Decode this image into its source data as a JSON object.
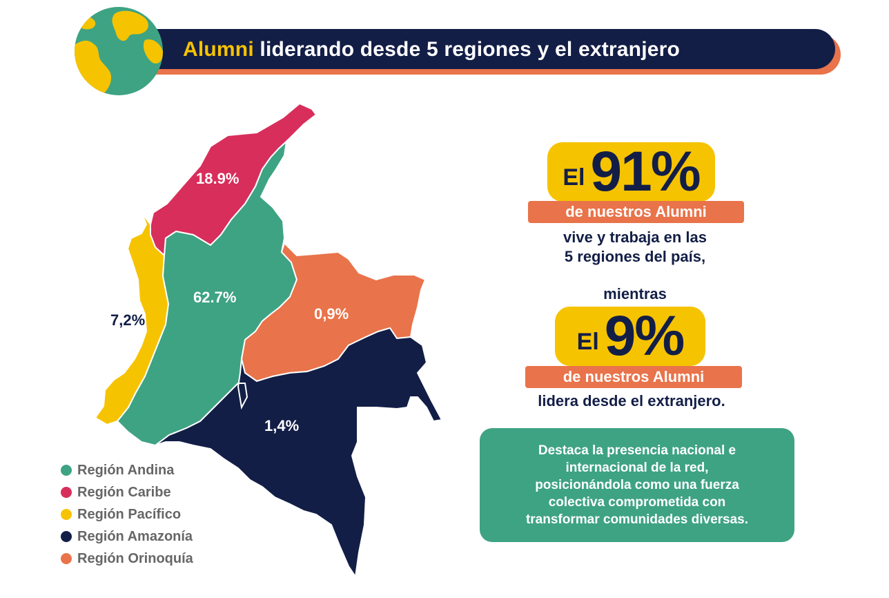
{
  "header": {
    "title_highlight": "Alumni",
    "title_rest": " liderando desde 5 regiones y el extranjero",
    "globe_icon": "globe-icon"
  },
  "colors": {
    "navy": "#131e47",
    "yellow": "#f6c300",
    "orange": "#e9734a",
    "green": "#3ea383",
    "crimson": "#d82e5b"
  },
  "map": {
    "regions": [
      {
        "name": "Región Caribe",
        "value": "18.9%"
      },
      {
        "name": "Región Andina",
        "value": "62.7%"
      },
      {
        "name": "Región Pacífico",
        "value": "7,2%"
      },
      {
        "name": "Región Orinoquía",
        "value": "0,9%"
      },
      {
        "name": "Región Amazonía",
        "value": "1,4%"
      }
    ]
  },
  "legend": {
    "items": [
      {
        "label": "Región Andina",
        "color": "#3ea383"
      },
      {
        "label": "Región Caribe",
        "color": "#d82e5b"
      },
      {
        "label": "Región Pacífico",
        "color": "#f6c300"
      },
      {
        "label": "Región Amazonía",
        "color": "#131e47"
      },
      {
        "label": "Región Orinoquía",
        "color": "#e9734a"
      }
    ]
  },
  "stats": {
    "first": {
      "prefix": "El",
      "percent": "91%",
      "bar": "de nuestros Alumni",
      "line1": "vive y trabaja en las",
      "line2": "5 regiones del país,"
    },
    "connector": "mientras",
    "second": {
      "prefix": "El",
      "percent": "9%",
      "bar": "de nuestros Alumni",
      "line1": "lidera desde el extranjero."
    }
  },
  "summary": {
    "line1": "Destaca la presencia nacional e",
    "line2": "internacional de la red,",
    "line3": "posicionándola como una fuerza",
    "line4": "colectiva comprometida con",
    "line5": "transformar comunidades diversas."
  }
}
